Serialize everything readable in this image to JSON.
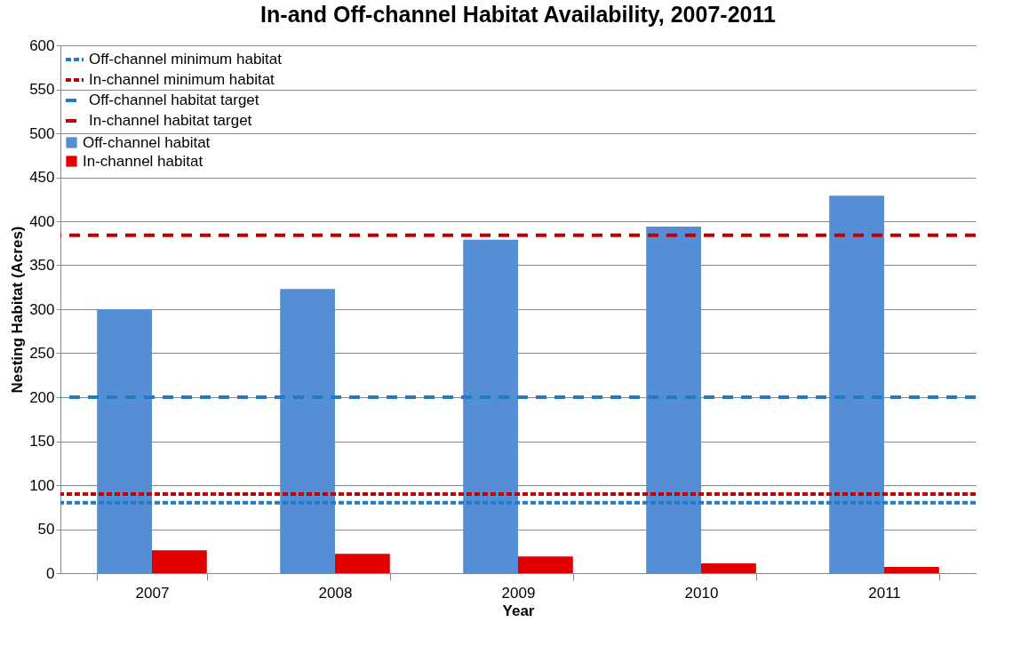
{
  "chart_data": {
    "type": "bar",
    "title": "In-and Off-channel Habitat Availability, 2007-2011",
    "xlabel": "Year",
    "ylabel": "Nesting Habitat (Acres)",
    "categories": [
      "2007",
      "2008",
      "2009",
      "2010",
      "2011"
    ],
    "series": [
      {
        "name": "Off-channel habitat",
        "color": "#558ed5",
        "values": [
          300,
          323,
          379,
          394,
          429
        ]
      },
      {
        "name": "In-channel habitat",
        "color": "#e00000",
        "values": [
          26,
          22,
          19,
          11,
          7
        ]
      }
    ],
    "ref_lines": [
      {
        "axis": "y",
        "value": 80,
        "label": "Off-channel minimum habitat",
        "color": "#1f7bc8",
        "line_style": "dotted"
      },
      {
        "axis": "y",
        "value": 90,
        "label": "In-channel minimum habitat",
        "color": "#c00000",
        "line_style": "dotted"
      },
      {
        "axis": "y",
        "value": 200,
        "label": "Off-channel habitat target",
        "color": "#1f7bc8",
        "line_style": "dashed"
      },
      {
        "axis": "y",
        "value": 384,
        "label": "In-channel habitat target",
        "color": "#c00000",
        "line_style": "dashed"
      }
    ],
    "ylim": [
      0,
      600
    ],
    "yticks": [
      0,
      50,
      100,
      150,
      200,
      250,
      300,
      350,
      400,
      450,
      500,
      550,
      600
    ],
    "grid": "y",
    "legend": "top left"
  }
}
